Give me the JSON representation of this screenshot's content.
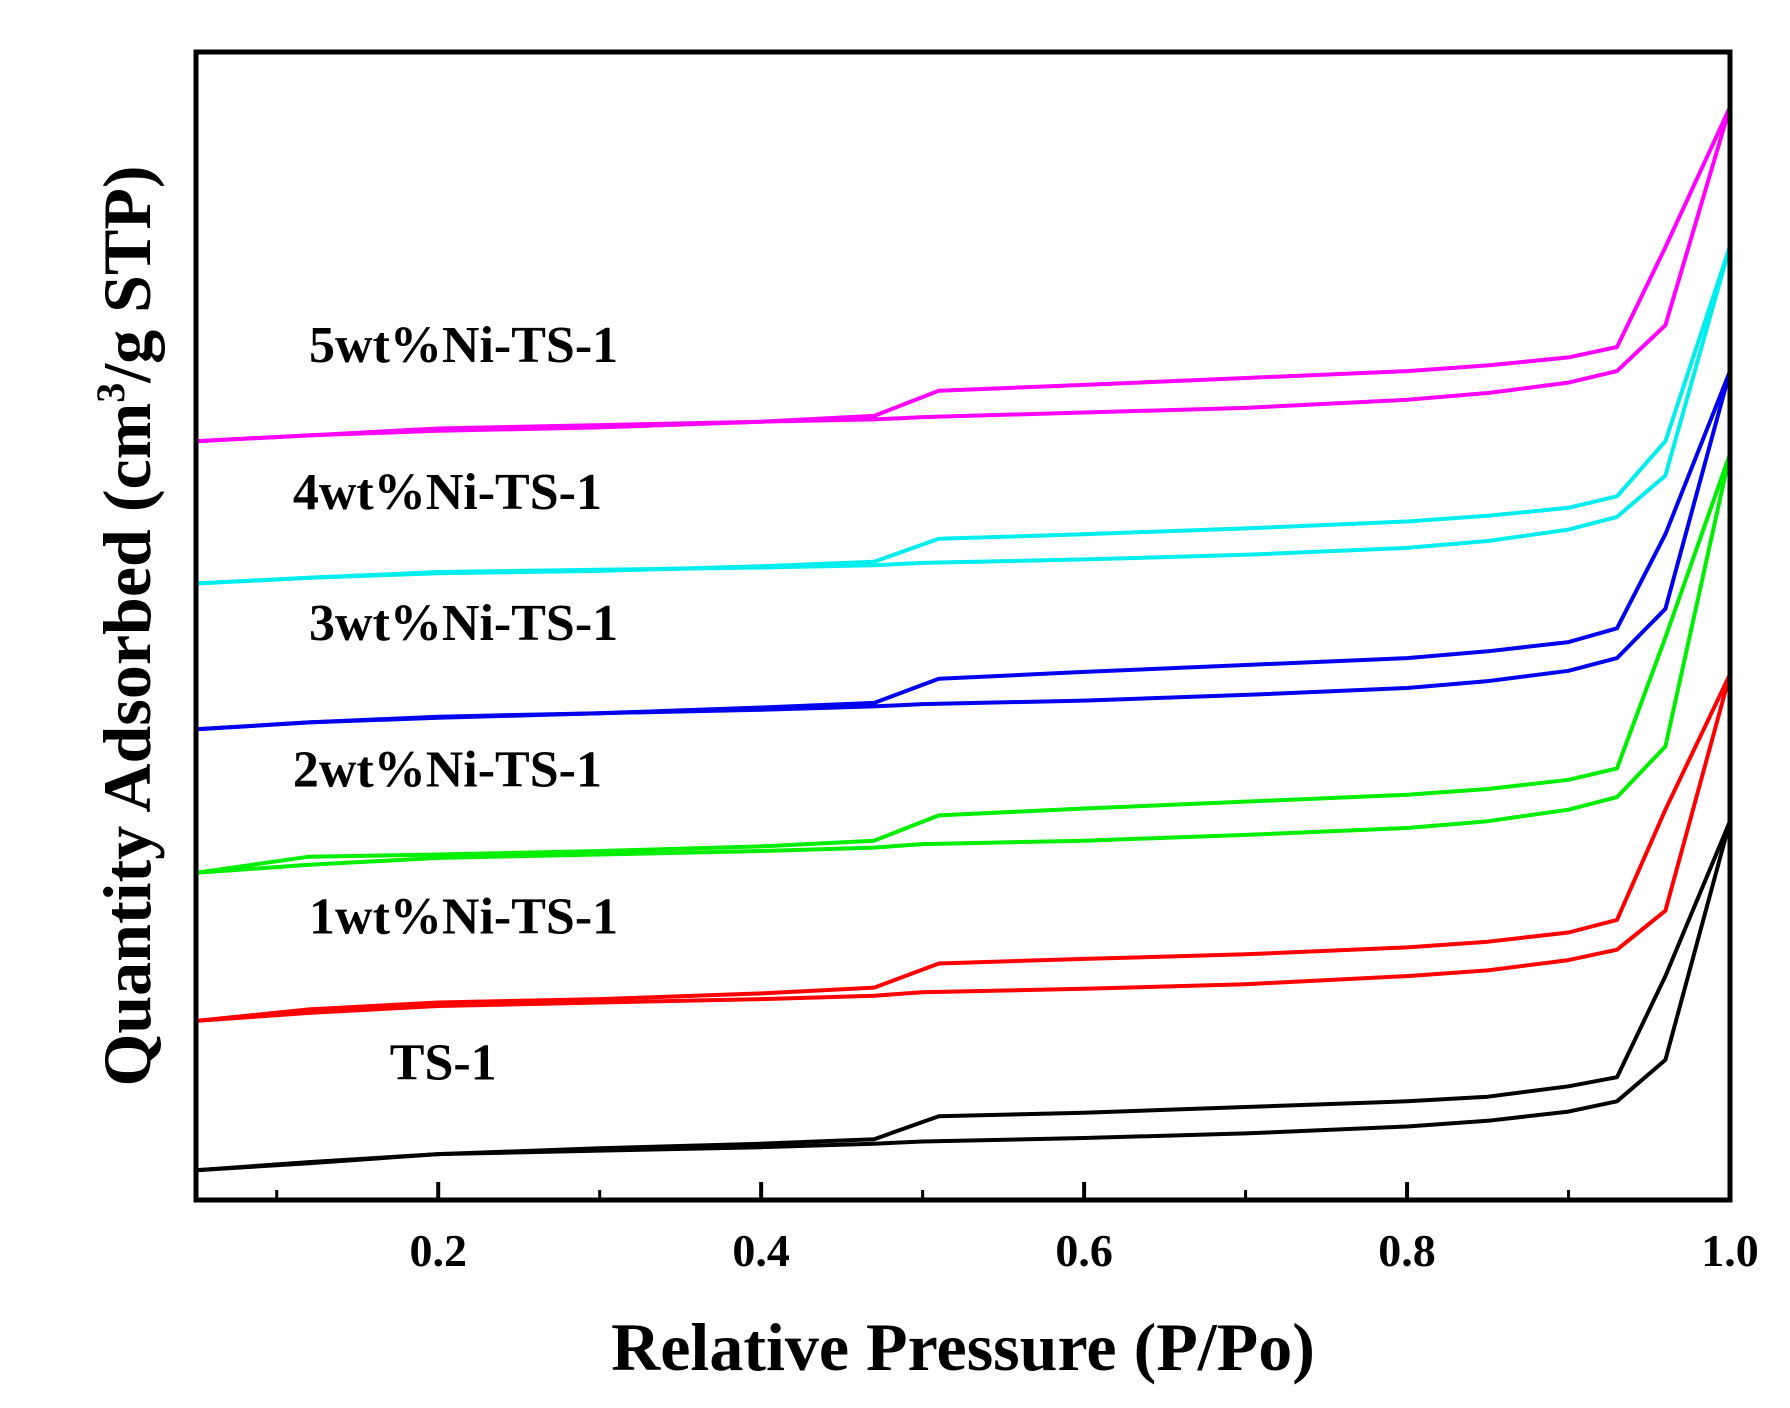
{
  "chart_data": {
    "type": "line",
    "title": "",
    "xlabel": "Relative Pressure (P/Po)",
    "ylabel": {
      "prefix": "Quantity Adsorbed (cm",
      "sup": "3",
      "suffix": "/g STP)"
    },
    "xlim": [
      0.05,
      1.0
    ],
    "ylim": [
      0,
      100
    ],
    "x_ticks": [
      {
        "value": 0.2,
        "label": "0.2"
      },
      {
        "value": 0.4,
        "label": "0.4"
      },
      {
        "value": 0.6,
        "label": "0.6"
      },
      {
        "value": 0.8,
        "label": "0.8"
      },
      {
        "value": 1.0,
        "label": "1.0"
      }
    ],
    "x_minor_ticks": [
      0.1,
      0.3,
      0.5,
      0.7,
      0.9
    ],
    "y_tick_labels": false,
    "series": [
      {
        "name": "TS-1",
        "label": "TS-1",
        "color": "#000000",
        "adsorption": {
          "x": [
            0.05,
            0.12,
            0.2,
            0.3,
            0.4,
            0.47,
            0.5,
            0.6,
            0.7,
            0.8,
            0.85,
            0.9,
            0.93,
            0.96,
            1.0
          ],
          "y": [
            2.6,
            3.3,
            4.0,
            4.3,
            4.6,
            4.9,
            5.1,
            5.4,
            5.8,
            6.4,
            6.9,
            7.7,
            8.6,
            12.2,
            33.0
          ]
        },
        "desorption": {
          "x": [
            1.0,
            0.96,
            0.93,
            0.9,
            0.85,
            0.8,
            0.7,
            0.6,
            0.51,
            0.47,
            0.4,
            0.3,
            0.2,
            0.12,
            0.05
          ],
          "y": [
            33.0,
            19.5,
            10.7,
            9.9,
            9.0,
            8.6,
            8.1,
            7.6,
            7.3,
            5.3,
            4.9,
            4.5,
            4.0,
            3.2,
            2.6
          ]
        }
      },
      {
        "name": "1wt%Ni-TS-1",
        "label": "1wt%Ni-TS-1",
        "color": "#ff0000",
        "adsorption": {
          "x": [
            0.05,
            0.12,
            0.2,
            0.3,
            0.4,
            0.47,
            0.5,
            0.6,
            0.7,
            0.8,
            0.85,
            0.9,
            0.93,
            0.96,
            1.0
          ],
          "y": [
            15.6,
            16.3,
            16.9,
            17.2,
            17.5,
            17.8,
            18.1,
            18.4,
            18.8,
            19.5,
            20.0,
            20.9,
            21.8,
            25.2,
            45.8
          ]
        },
        "desorption": {
          "x": [
            1.0,
            0.96,
            0.93,
            0.9,
            0.85,
            0.8,
            0.7,
            0.6,
            0.51,
            0.47,
            0.4,
            0.3,
            0.2,
            0.12,
            0.05
          ],
          "y": [
            45.8,
            34.0,
            24.4,
            23.3,
            22.5,
            22.0,
            21.4,
            21.0,
            20.6,
            18.5,
            18.0,
            17.5,
            17.2,
            16.6,
            15.6
          ]
        }
      },
      {
        "name": "2wt%Ni-TS-1",
        "label": "2wt%Ni-TS-1",
        "color": "#00ee00",
        "adsorption": {
          "x": [
            0.05,
            0.12,
            0.2,
            0.3,
            0.4,
            0.47,
            0.5,
            0.6,
            0.7,
            0.8,
            0.85,
            0.9,
            0.93,
            0.96,
            1.0
          ],
          "y": [
            28.5,
            29.2,
            29.8,
            30.1,
            30.4,
            30.7,
            31.0,
            31.3,
            31.8,
            32.4,
            33.0,
            34.0,
            35.1,
            39.5,
            65.0
          ]
        },
        "desorption": {
          "x": [
            1.0,
            0.96,
            0.93,
            0.9,
            0.85,
            0.8,
            0.7,
            0.6,
            0.51,
            0.47,
            0.4,
            0.3,
            0.2,
            0.12,
            0.05
          ],
          "y": [
            65.0,
            49.0,
            37.6,
            36.6,
            35.8,
            35.3,
            34.7,
            34.1,
            33.5,
            31.3,
            30.8,
            30.4,
            30.1,
            29.9,
            28.5
          ]
        }
      },
      {
        "name": "3wt%Ni-TS-1",
        "label": "3wt%Ni-TS-1",
        "color": "#0000ee",
        "adsorption": {
          "x": [
            0.05,
            0.12,
            0.2,
            0.3,
            0.4,
            0.47,
            0.5,
            0.6,
            0.7,
            0.8,
            0.85,
            0.9,
            0.93,
            0.96,
            1.0
          ],
          "y": [
            41.0,
            41.6,
            42.1,
            42.4,
            42.7,
            43.0,
            43.2,
            43.5,
            44.0,
            44.6,
            45.2,
            46.1,
            47.2,
            51.5,
            72.2
          ]
        },
        "desorption": {
          "x": [
            1.0,
            0.96,
            0.93,
            0.9,
            0.85,
            0.8,
            0.7,
            0.6,
            0.51,
            0.47,
            0.4,
            0.3,
            0.2,
            0.12,
            0.05
          ],
          "y": [
            72.2,
            58.0,
            49.8,
            48.6,
            47.8,
            47.2,
            46.6,
            46.0,
            45.4,
            43.3,
            42.9,
            42.4,
            42.0,
            41.6,
            41.0
          ]
        }
      },
      {
        "name": "4wt%Ni-TS-1",
        "label": "4wt%Ni-TS-1",
        "color": "#00eeee",
        "adsorption": {
          "x": [
            0.05,
            0.12,
            0.2,
            0.3,
            0.4,
            0.47,
            0.5,
            0.6,
            0.7,
            0.8,
            0.85,
            0.9,
            0.93,
            0.96,
            1.0
          ],
          "y": [
            53.7,
            54.2,
            54.7,
            54.9,
            55.1,
            55.3,
            55.5,
            55.8,
            56.2,
            56.8,
            57.4,
            58.4,
            59.5,
            63.1,
            83.1
          ]
        },
        "desorption": {
          "x": [
            1.0,
            0.96,
            0.93,
            0.9,
            0.85,
            0.8,
            0.7,
            0.6,
            0.51,
            0.47,
            0.4,
            0.3,
            0.2,
            0.12,
            0.05
          ],
          "y": [
            83.1,
            66.1,
            61.3,
            60.3,
            59.6,
            59.1,
            58.5,
            58.0,
            57.6,
            55.6,
            55.2,
            54.8,
            54.6,
            54.2,
            53.7
          ]
        }
      },
      {
        "name": "5wt%Ni-TS-1",
        "label": "5wt%Ni-TS-1",
        "color": "#ff00ff",
        "adsorption": {
          "x": [
            0.05,
            0.12,
            0.2,
            0.3,
            0.4,
            0.47,
            0.5,
            0.6,
            0.7,
            0.8,
            0.85,
            0.9,
            0.93,
            0.96,
            1.0
          ],
          "y": [
            66.1,
            66.6,
            67.2,
            67.5,
            67.8,
            68.0,
            68.2,
            68.6,
            69.0,
            69.7,
            70.3,
            71.2,
            72.2,
            76.2,
            95.2
          ]
        },
        "desorption": {
          "x": [
            1.0,
            0.96,
            0.93,
            0.9,
            0.85,
            0.8,
            0.7,
            0.6,
            0.51,
            0.47,
            0.4,
            0.3,
            0.2,
            0.12,
            0.05
          ],
          "y": [
            95.2,
            83.0,
            74.3,
            73.4,
            72.7,
            72.2,
            71.6,
            71.0,
            70.5,
            68.3,
            67.8,
            67.3,
            67.0,
            66.6,
            66.1
          ]
        }
      }
    ]
  }
}
